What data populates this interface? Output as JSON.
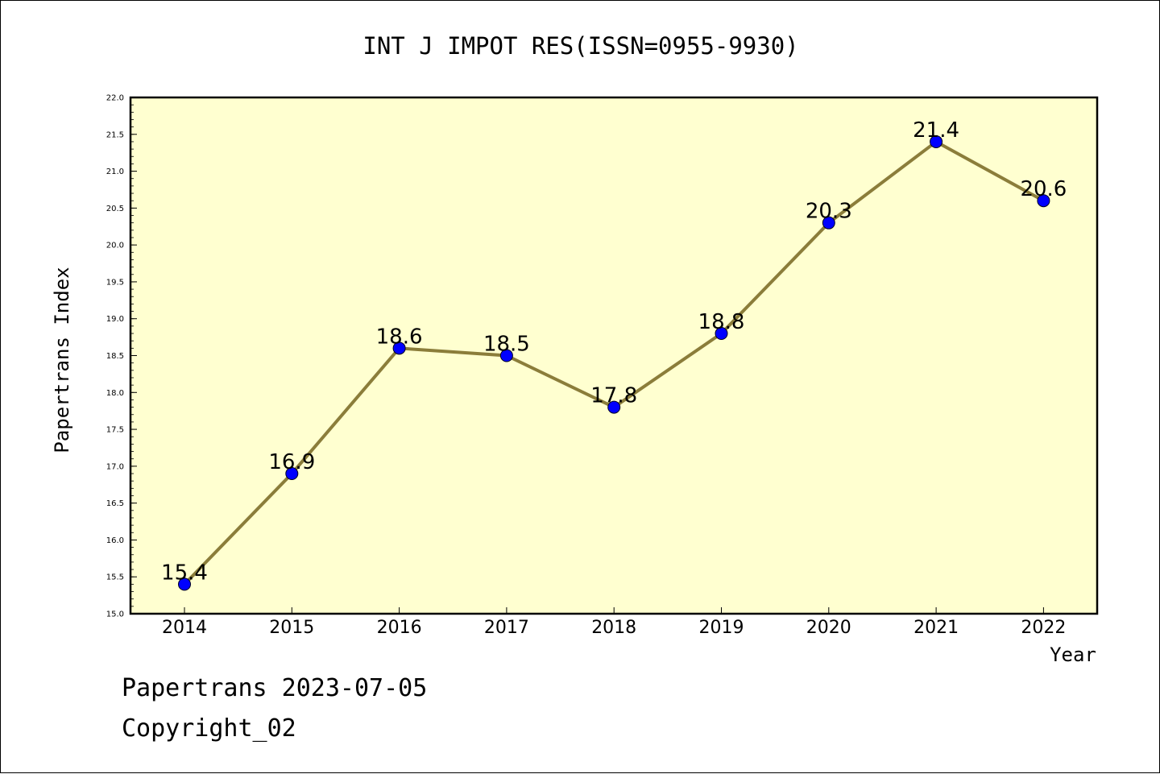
{
  "chart_data": {
    "type": "line",
    "title": "INT J IMPOT RES(ISSN=0955-9930)",
    "xlabel": "Year",
    "ylabel": "Papertrans Index",
    "categories": [
      "2014",
      "2015",
      "2016",
      "2017",
      "2018",
      "2019",
      "2020",
      "2021",
      "2022"
    ],
    "series": [
      {
        "values": [
          15.4,
          16.9,
          18.6,
          18.5,
          17.8,
          18.8,
          20.3,
          21.4,
          20.6
        ],
        "labels": [
          "15.4",
          "16.9",
          "18.6",
          "18.5",
          "17.8",
          "18.8",
          "20.3",
          "21.4",
          "20.6"
        ]
      }
    ],
    "ylim": [
      15.0,
      22.0
    ],
    "yticks": [
      "15.0",
      "15.5",
      "16.0",
      "16.5",
      "17.0",
      "17.5",
      "18.0",
      "18.5",
      "19.0",
      "19.5",
      "20.0",
      "20.5",
      "21.0",
      "21.5",
      "22.0"
    ],
    "grid": false,
    "colors": {
      "plot_background": "#ffffd0",
      "line": "#8b7d3a",
      "marker": "#0000ff"
    }
  },
  "footer": {
    "date_line": "Papertrans 2023-07-05",
    "copyright": "Copyright_02"
  }
}
